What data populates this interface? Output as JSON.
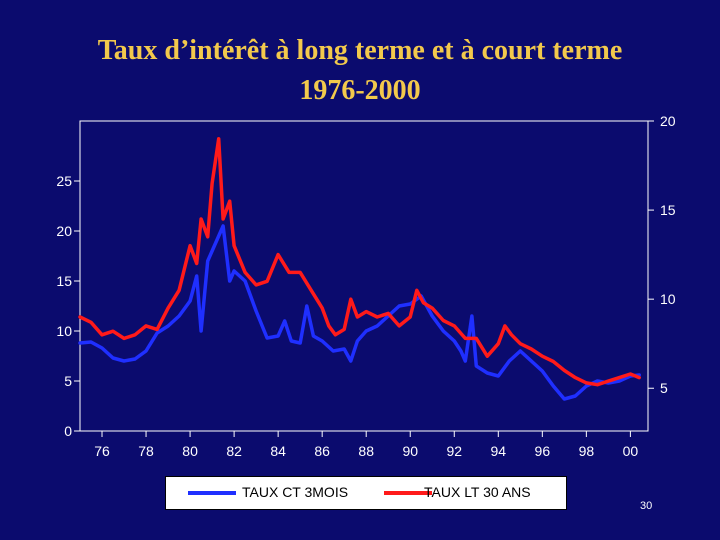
{
  "slide": {
    "title_line_1": "Taux d’intérêt à long terme et à court terme",
    "title_line_2": "1976-2000",
    "page_number": "30",
    "title_color": "#f2c94c",
    "background": "#0b0b6e"
  },
  "chart_data": {
    "type": "line",
    "title": "",
    "xlabel": "",
    "ylabel": "",
    "grid": false,
    "x_range": [
      1975,
      2000.8
    ],
    "x_ticks": [
      {
        "value": 1976,
        "label": "76"
      },
      {
        "value": 1978,
        "label": "78"
      },
      {
        "value": 1980,
        "label": "80"
      },
      {
        "value": 1982,
        "label": "82"
      },
      {
        "value": 1984,
        "label": "84"
      },
      {
        "value": 1986,
        "label": "86"
      },
      {
        "value": 1988,
        "label": "88"
      },
      {
        "value": 1990,
        "label": "90"
      },
      {
        "value": 1992,
        "label": "92"
      },
      {
        "value": 1994,
        "label": "94"
      },
      {
        "value": 1996,
        "label": "96"
      },
      {
        "value": 1998,
        "label": "98"
      },
      {
        "value": 2000,
        "label": "00"
      }
    ],
    "left_axis": {
      "range": [
        0,
        31
      ],
      "ticks": [
        0,
        5,
        10,
        15,
        20,
        25
      ]
    },
    "right_axis": {
      "range": [
        2.6,
        20
      ],
      "ticks": [
        5,
        10,
        15,
        20
      ]
    },
    "legend_position": "bottom",
    "series": [
      {
        "name": "TAUX CT 3MOIS",
        "color": "#1f2fff",
        "axis": "left",
        "x": [
          1975.0,
          1975.5,
          1976.0,
          1976.5,
          1977.0,
          1977.5,
          1978.0,
          1978.5,
          1979.0,
          1979.5,
          1980.0,
          1980.3,
          1980.5,
          1980.8,
          1981.0,
          1981.5,
          1981.8,
          1982.0,
          1982.5,
          1983.0,
          1983.5,
          1984.0,
          1984.3,
          1984.6,
          1985.0,
          1985.3,
          1985.6,
          1986.0,
          1986.5,
          1987.0,
          1987.3,
          1987.6,
          1988.0,
          1988.5,
          1989.0,
          1989.5,
          1990.0,
          1990.5,
          1991.0,
          1991.5,
          1992.0,
          1992.3,
          1992.5,
          1992.8,
          1993.0,
          1993.5,
          1994.0,
          1994.5,
          1995.0,
          1995.5,
          1996.0,
          1996.5,
          1997.0,
          1997.5,
          1998.0,
          1998.5,
          1999.0,
          1999.5,
          2000.0,
          2000.4
        ],
        "values": [
          8.8,
          8.9,
          8.3,
          7.3,
          7.0,
          7.2,
          8.0,
          9.8,
          10.5,
          11.5,
          13.0,
          15.5,
          10.0,
          17.0,
          18.0,
          20.5,
          15.0,
          16.0,
          15.0,
          12.0,
          9.3,
          9.5,
          11.0,
          9.0,
          8.8,
          12.5,
          9.5,
          9.0,
          8.0,
          8.2,
          7.0,
          9.0,
          10.0,
          10.5,
          11.5,
          12.5,
          12.7,
          13.5,
          11.5,
          10.0,
          9.0,
          8.0,
          7.0,
          11.5,
          6.5,
          5.8,
          5.5,
          7.0,
          8.0,
          7.0,
          6.0,
          4.5,
          3.2,
          3.5,
          4.5,
          5.0,
          4.8,
          5.0,
          5.5,
          5.6
        ]
      },
      {
        "name": "TAUX LT 30 ANS",
        "color": "#ff1a1a",
        "axis": "right",
        "x": [
          1975.0,
          1975.5,
          1976.0,
          1976.5,
          1977.0,
          1977.5,
          1978.0,
          1978.5,
          1979.0,
          1979.5,
          1980.0,
          1980.3,
          1980.5,
          1980.8,
          1981.0,
          1981.3,
          1981.5,
          1981.8,
          1982.0,
          1982.5,
          1983.0,
          1983.5,
          1984.0,
          1984.5,
          1985.0,
          1985.5,
          1986.0,
          1986.3,
          1986.6,
          1987.0,
          1987.3,
          1987.6,
          1988.0,
          1988.5,
          1989.0,
          1989.5,
          1990.0,
          1990.3,
          1990.6,
          1991.0,
          1991.5,
          1992.0,
          1992.5,
          1993.0,
          1993.5,
          1994.0,
          1994.3,
          1994.6,
          1995.0,
          1995.5,
          1996.0,
          1996.5,
          1997.0,
          1997.5,
          1998.0,
          1998.5,
          1999.0,
          1999.5,
          2000.0,
          2000.4
        ],
        "values": [
          9.0,
          8.7,
          8.0,
          8.2,
          7.8,
          8.0,
          8.5,
          8.3,
          9.5,
          10.5,
          13.0,
          12.0,
          14.5,
          13.5,
          16.5,
          19.0,
          14.5,
          15.5,
          13.0,
          11.5,
          10.8,
          11.0,
          12.5,
          11.5,
          11.5,
          10.5,
          9.5,
          8.5,
          8.0,
          8.3,
          10.0,
          9.0,
          9.3,
          9.0,
          9.2,
          8.5,
          9.0,
          10.5,
          9.8,
          9.5,
          8.8,
          8.5,
          7.8,
          7.8,
          6.8,
          7.5,
          8.5,
          8.0,
          7.5,
          7.2,
          6.8,
          6.5,
          6.0,
          5.6,
          5.3,
          5.2,
          5.4,
          5.6,
          5.8,
          5.6
        ]
      }
    ]
  }
}
